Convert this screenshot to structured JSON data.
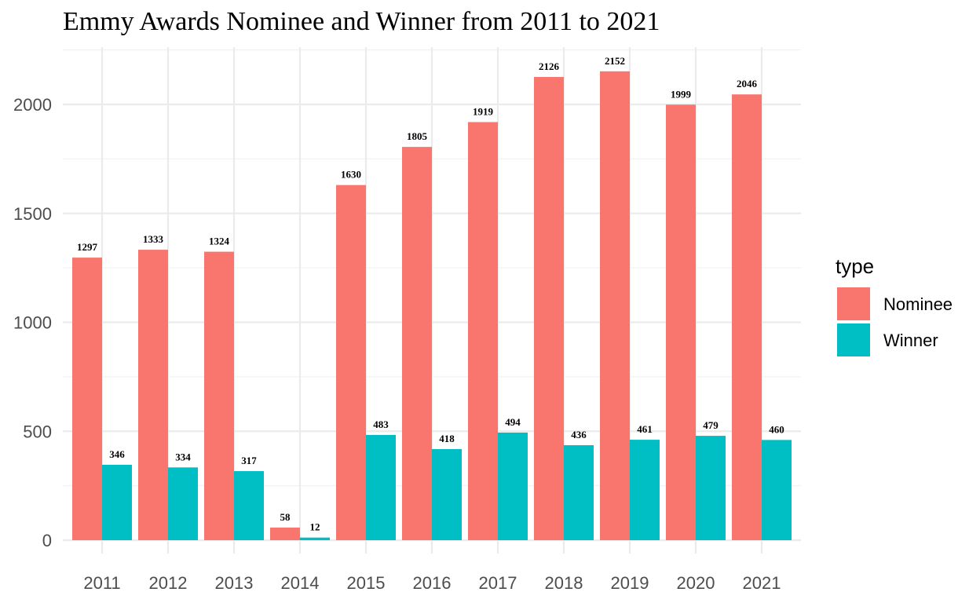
{
  "chart_data": {
    "type": "bar",
    "title": "Emmy Awards Nominee and Winner from 2011 to 2021",
    "xlabel": "",
    "ylabel": "",
    "categories": [
      "2011",
      "2012",
      "2013",
      "2014",
      "2015",
      "2016",
      "2017",
      "2018",
      "2019",
      "2020",
      "2021"
    ],
    "series": [
      {
        "name": "Nominee",
        "color": "#F8766D",
        "values": [
          1297,
          1333,
          1324,
          58,
          1630,
          1805,
          1919,
          2126,
          2152,
          1999,
          2046
        ]
      },
      {
        "name": "Winner",
        "color": "#00BFC4",
        "values": [
          346,
          334,
          317,
          12,
          483,
          418,
          494,
          436,
          461,
          479,
          460
        ]
      }
    ],
    "ylim": [
      0,
      2250
    ],
    "y_ticks": [
      0,
      500,
      1000,
      1500,
      2000
    ],
    "grid": true,
    "legend": {
      "title": "type",
      "placement": "right"
    }
  }
}
